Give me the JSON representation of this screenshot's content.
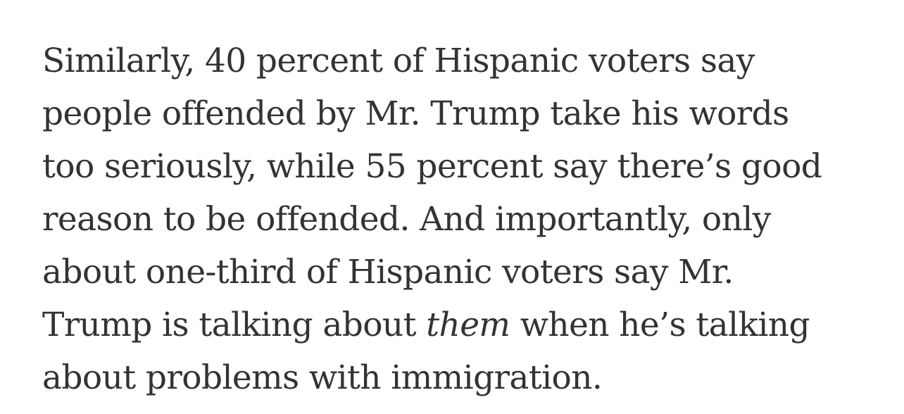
{
  "article": {
    "paragraph": {
      "line_1": "Similarly, 40 percent of Hispanic voters say",
      "line_2": "people offended by Mr. Trump take his words",
      "line_3": "too seriously, while 55 percent say there’s good",
      "line_4": "reason to be offended. And importantly, only",
      "line_5": "about one-third of Hispanic voters say Mr.",
      "line_6_before": "Trump is talking about ",
      "line_6_emphasis": "them",
      "line_6_after": " when he’s talking",
      "line_7": "about problems with immigration."
    }
  }
}
